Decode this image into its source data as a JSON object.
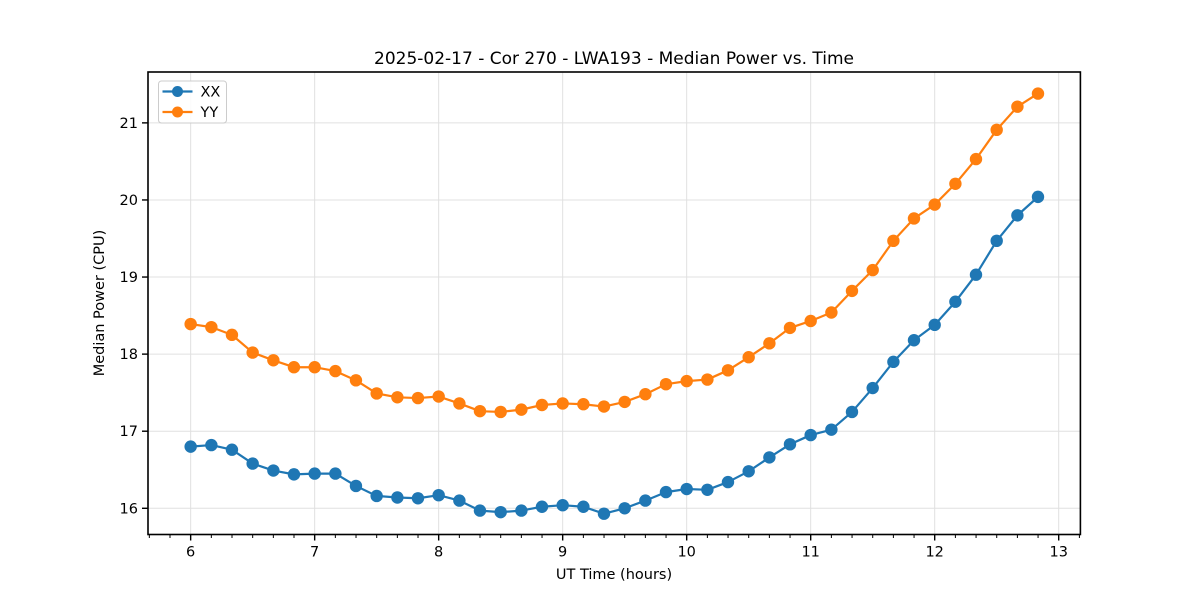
{
  "chart_data": {
    "type": "line",
    "title": "2025-02-17 - Cor 270 - LWA193 - Median Power vs. Time",
    "xlabel": "UT Time (hours)",
    "ylabel": "Median Power (CPU)",
    "xlim": [
      5.656,
      13.175
    ],
    "ylim": [
      15.66,
      21.66
    ],
    "xticks": [
      6,
      7,
      8,
      9,
      10,
      11,
      12,
      13
    ],
    "yticks": [
      16,
      17,
      18,
      19,
      20,
      21
    ],
    "x_minor_tick_interval": 0.16667,
    "grid": true,
    "grid_color": "#e0e0e0",
    "background_color": "#ffffff",
    "spine_color": "#000000",
    "legend_position": "upper left",
    "x": [
      6.0,
      6.167,
      6.333,
      6.5,
      6.667,
      6.833,
      7.0,
      7.167,
      7.333,
      7.5,
      7.667,
      7.833,
      8.0,
      8.167,
      8.333,
      8.5,
      8.667,
      8.833,
      9.0,
      9.167,
      9.333,
      9.5,
      9.667,
      9.833,
      10.0,
      10.167,
      10.333,
      10.5,
      10.667,
      10.833,
      11.0,
      11.167,
      11.333,
      11.5,
      11.667,
      11.833,
      12.0,
      12.167,
      12.333,
      12.5,
      12.667,
      12.833
    ],
    "series": [
      {
        "name": "XX",
        "color": "#1f77b4",
        "marker": "circle",
        "values": [
          16.8,
          16.82,
          16.76,
          16.58,
          16.49,
          16.44,
          16.45,
          16.45,
          16.29,
          16.16,
          16.14,
          16.13,
          16.17,
          16.1,
          15.97,
          15.95,
          15.97,
          16.02,
          16.04,
          16.02,
          15.93,
          16.0,
          16.1,
          16.21,
          16.25,
          16.24,
          16.34,
          16.48,
          16.66,
          16.83,
          16.95,
          17.02,
          17.25,
          17.56,
          17.9,
          18.18,
          18.38,
          18.68,
          19.03,
          19.47,
          19.8,
          20.04
        ]
      },
      {
        "name": "YY",
        "color": "#ff7f0e",
        "marker": "circle",
        "values": [
          18.39,
          18.35,
          18.25,
          18.02,
          17.92,
          17.83,
          17.83,
          17.78,
          17.66,
          17.49,
          17.44,
          17.43,
          17.45,
          17.36,
          17.26,
          17.25,
          17.28,
          17.34,
          17.36,
          17.35,
          17.32,
          17.38,
          17.48,
          17.61,
          17.65,
          17.67,
          17.79,
          17.96,
          18.14,
          18.34,
          18.43,
          18.54,
          18.82,
          19.09,
          19.47,
          19.76,
          19.94,
          20.21,
          20.53,
          20.91,
          21.21,
          21.38
        ]
      }
    ]
  }
}
